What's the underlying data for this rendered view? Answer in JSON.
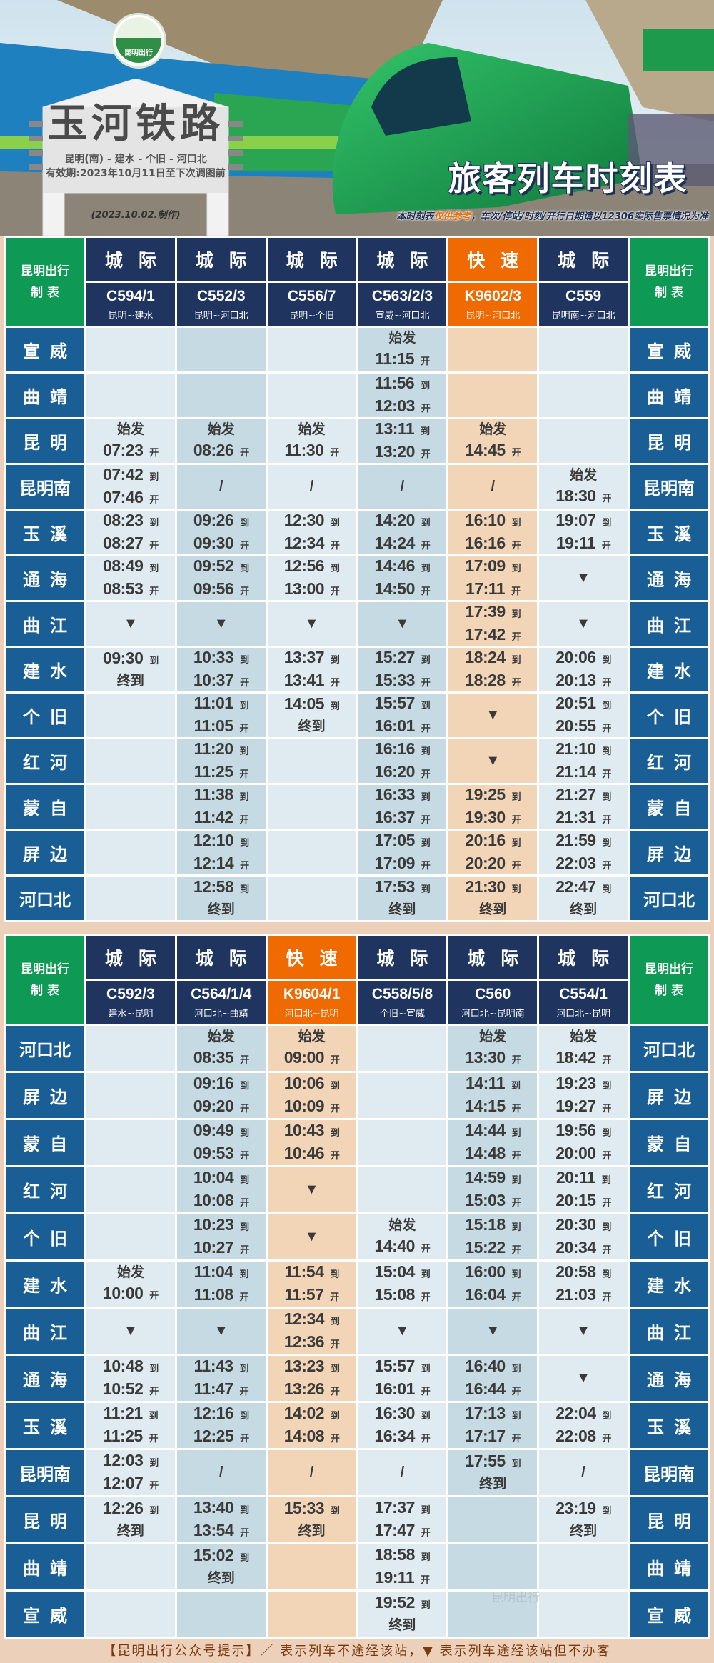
{
  "header": {
    "logo_text": "昆明出行",
    "sign_title": "玉河铁路",
    "route": "昆明(南) - 建水 - 个旧 - 河口北",
    "validity": "有效期:2023年10月11日至下次调图前",
    "made": "(2023.10.02.制作)",
    "main_title": "旅客列车时刻表",
    "disclaimer_pre": "本时刻表",
    "disclaimer_hl": "仅供参考",
    "disclaimer_post": "，车次/停站/时刻/开行日期请以12306实际售票情况为准"
  },
  "corner_label": [
    "昆明出行",
    "制 表"
  ],
  "colors": {
    "intercity": "#1f3560",
    "express": "#ef6a00",
    "station": "#1a5e96",
    "corner": "#0e9a55",
    "background": "#ecd0ba"
  },
  "legend_symbols": {
    "not_via": "/",
    "pass_no_stop": "▼"
  },
  "tables": [
    {
      "stations": [
        "宣威",
        "曲靖",
        "昆明",
        "昆明南",
        "玉溪",
        "通海",
        "曲江",
        "建水",
        "个旧",
        "红河",
        "蒙自",
        "屏边",
        "河口北"
      ],
      "trains": [
        {
          "type": "城际",
          "number": "C594/1",
          "route": "昆明~建水",
          "shade": 0,
          "stops": [
            "",
            "",
            "始发|07:23 开",
            "07:42 到|07:46 开",
            "08:23 到|08:27 开",
            "08:49 到|08:53 开",
            "▼",
            "09:30 到|终到",
            "",
            "",
            "",
            "",
            ""
          ]
        },
        {
          "type": "城际",
          "number": "C552/3",
          "route": "昆明~河口北",
          "shade": 1,
          "stops": [
            "",
            "",
            "始发|08:26 开",
            "/",
            "09:26 到|09:30 开",
            "09:52 到|09:56 开",
            "▼",
            "10:33 到|10:37 开",
            "11:01 到|11:05 开",
            "11:20 到|11:25 开",
            "11:38 到|11:42 开",
            "12:10 到|12:14 开",
            "12:58 到|终到"
          ]
        },
        {
          "type": "城际",
          "number": "C556/7",
          "route": "昆明~个旧",
          "shade": 0,
          "stops": [
            "",
            "",
            "始发|11:30 开",
            "/",
            "12:30 到|12:34 开",
            "12:56 到|13:00 开",
            "▼",
            "13:37 到|13:41 开",
            "14:05 到|终到",
            "",
            "",
            "",
            ""
          ]
        },
        {
          "type": "城际",
          "number": "C563/2/3",
          "route": "宣威~河口北",
          "shade": 1,
          "stops": [
            "始发|11:15 开",
            "11:56 到|12:03 开",
            "13:11 到|13:20 开",
            "/",
            "14:20 到|14:24 开",
            "14:46 到|14:50 开",
            "▼",
            "15:27 到|15:33 开",
            "15:57 到|16:01 开",
            "16:16 到|16:20 开",
            "16:33 到|16:37 开",
            "17:05 到|17:09 开",
            "17:53 到|终到"
          ]
        },
        {
          "type": "快速",
          "number": "K9602/3",
          "route": "昆明~河口北",
          "shade": 2,
          "stops": [
            "",
            "",
            "始发|14:45 开",
            "/",
            "16:10 到|16:16 开",
            "17:09 到|17:11 开",
            "17:39 到|17:42 开",
            "18:24 到|18:28 开",
            "▼",
            "▼",
            "19:25 到|19:30 开",
            "20:16 到|20:20 开",
            "21:30 到|终到"
          ]
        },
        {
          "type": "城际",
          "number": "C559",
          "route": "昆明南~河口北",
          "shade": 0,
          "stops": [
            "",
            "",
            "",
            "始发|18:30 开",
            "19:07 到|19:11 开",
            "▼",
            "▼",
            "20:06 到|20:13 开",
            "20:51 到|20:55 开",
            "21:10 到|21:14 开",
            "21:27 到|21:31 开",
            "21:59 到|22:03 开",
            "22:47 到|终到"
          ]
        }
      ]
    },
    {
      "stations": [
        "河口北",
        "屏边",
        "蒙自",
        "红河",
        "个旧",
        "建水",
        "曲江",
        "通海",
        "玉溪",
        "昆明南",
        "昆明",
        "曲靖",
        "宣威"
      ],
      "trains": [
        {
          "type": "城际",
          "number": "C592/3",
          "route": "建水~昆明",
          "shade": 0,
          "stops": [
            "",
            "",
            "",
            "",
            "",
            "始发|10:00 开",
            "▼",
            "10:48 到|10:52 开",
            "11:21 到|11:25 开",
            "12:03 到|12:07 开",
            "12:26 到|终到",
            "",
            ""
          ]
        },
        {
          "type": "城际",
          "number": "C564/1/4",
          "route": "河口北~曲靖",
          "shade": 1,
          "stops": [
            "始发|08:35 开",
            "09:16 到|09:20 开",
            "09:49 到|09:53 开",
            "10:04 到|10:08 开",
            "10:23 到|10:27 开",
            "11:04 到|11:08 开",
            "▼",
            "11:43 到|11:47 开",
            "12:16 到|12:25 开",
            "/",
            "13:40 到|13:54 开",
            "15:02 到|终到",
            ""
          ]
        },
        {
          "type": "快速",
          "number": "K9604/1",
          "route": "河口北~昆明",
          "shade": 2,
          "stops": [
            "始发|09:00 开",
            "10:06 到|10:09 开",
            "10:43 到|10:46 开",
            "▼",
            "▼",
            "11:54 到|11:57 开",
            "12:34 到|12:36 开",
            "13:23 到|13:26 开",
            "14:02 到|14:08 开",
            "/",
            "15:33 到|终到",
            "",
            ""
          ]
        },
        {
          "type": "城际",
          "number": "C558/5/8",
          "route": "个旧~宣威",
          "shade": 0,
          "stops": [
            "",
            "",
            "",
            "",
            "始发|14:40 开",
            "15:04 到|15:08 开",
            "▼",
            "15:57 到|16:01 开",
            "16:30 到|16:34 开",
            "/",
            "17:37 到|17:47 开",
            "18:58 到|19:11 开",
            "19:52 到|终到"
          ]
        },
        {
          "type": "城际",
          "number": "C560",
          "route": "河口北~昆明南",
          "shade": 1,
          "stops": [
            "始发|13:30 开",
            "14:11 到|14:15 开",
            "14:44 到|14:48 开",
            "14:59 到|15:03 开",
            "15:18 到|15:22 开",
            "16:00 到|16:04 开",
            "▼",
            "16:40 到|16:44 开",
            "17:13 到|17:17 开",
            "17:55 到|终到",
            "",
            "",
            ""
          ]
        },
        {
          "type": "城际",
          "number": "C554/1",
          "route": "河口北~昆明",
          "shade": 0,
          "stops": [
            "始发|18:42 开",
            "19:23 到|19:27 开",
            "19:56 到|20:00 开",
            "20:11 到|20:15 开",
            "20:30 到|20:34 开",
            "20:58 到|21:03 开",
            "▼",
            "▼",
            "22:04 到|22:08 开",
            "/",
            "23:19 到|终到",
            "",
            ""
          ]
        }
      ]
    }
  ],
  "watermark": "昆明出行",
  "footer": "【昆明出行公众号提示】／ 表示列车不途经该站，▼ 表示列车途经该站但不办客"
}
